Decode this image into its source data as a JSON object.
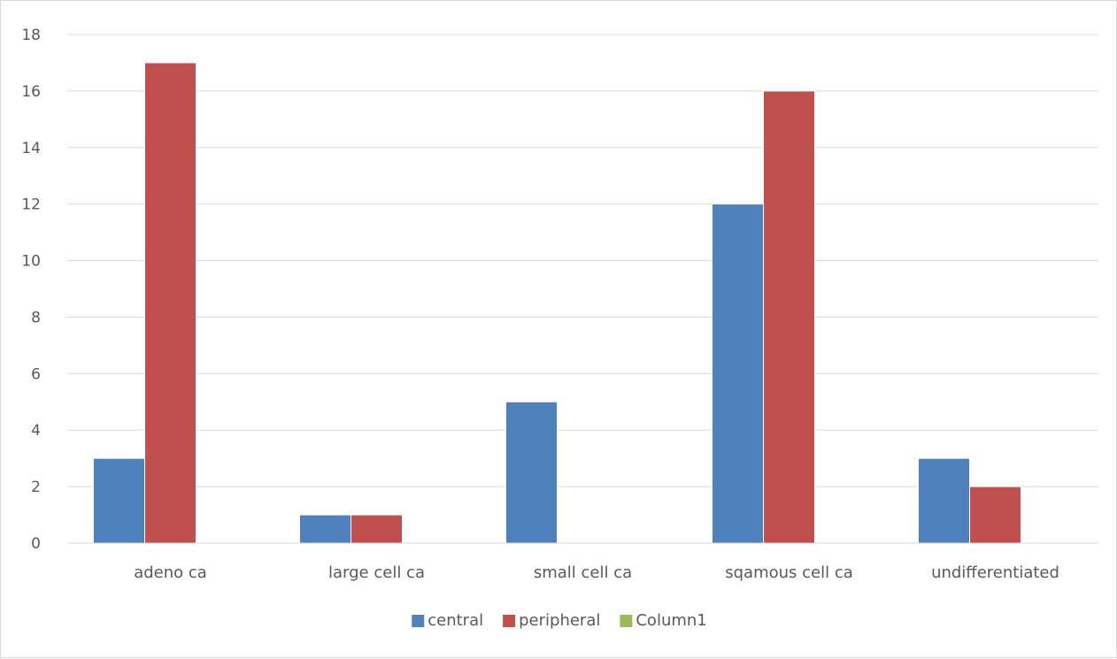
{
  "chart_data": {
    "type": "bar",
    "title": "",
    "xlabel": "",
    "ylabel": "",
    "categories": [
      "adeno ca",
      "large cell ca",
      "small cell ca",
      "sqamous cell ca",
      "undifferentiated"
    ],
    "series": [
      {
        "name": "central",
        "color": "#4f81bd",
        "values": [
          3,
          1,
          5,
          12,
          3
        ]
      },
      {
        "name": "peripheral",
        "color": "#c0504d",
        "values": [
          17,
          1,
          0,
          16,
          2
        ]
      },
      {
        "name": "Column1",
        "color": "#9bbb59",
        "values": [
          0,
          0,
          0,
          0,
          0
        ]
      }
    ],
    "ylim": [
      0,
      18
    ],
    "yticks": [
      0,
      2,
      4,
      6,
      8,
      10,
      12,
      14,
      16,
      18
    ],
    "grid": true,
    "legend_position": "bottom"
  }
}
